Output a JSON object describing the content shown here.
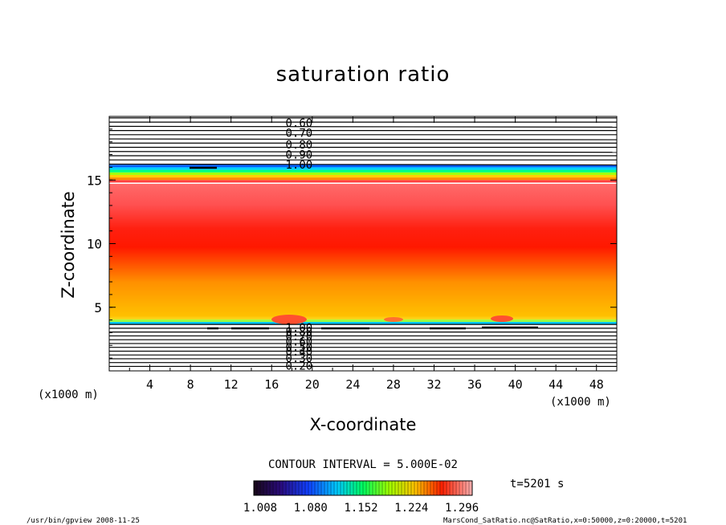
{
  "chart_data": {
    "type": "contour",
    "title": "saturation ratio",
    "xlabel": "X-coordinate",
    "ylabel": "Z-coordinate",
    "x_unit": "(x1000 m)",
    "y_unit": "(x1000 m)",
    "xlim": [
      0,
      50
    ],
    "ylim": [
      0,
      20
    ],
    "x_ticks": [
      "4",
      "8",
      "12",
      "16",
      "20",
      "24",
      "28",
      "32",
      "36",
      "40",
      "44",
      "48"
    ],
    "y_ticks": [
      "5",
      "10",
      "15"
    ],
    "contour_interval_label": "CONTOUR INTERVAL = 5.000E-02",
    "upper_contour_labels": [
      "0.60",
      "0.70",
      "0.80",
      "0.90",
      "1.00"
    ],
    "lower_contour_labels": [
      "1.00",
      "0.80",
      "0.70",
      "0.60",
      "0.50",
      "0.40",
      "0.30",
      "0.20"
    ],
    "colorbar": {
      "min": 1.008,
      "max": 1.32,
      "tick_labels": [
        "1.008",
        "1.080",
        "1.152",
        "1.224",
        "1.296"
      ]
    },
    "time_label": "t=5201 s",
    "profile": [
      {
        "z": 0.0,
        "ratio": 0.2
      },
      {
        "z": 3.5,
        "ratio": 0.95
      },
      {
        "z": 3.7,
        "ratio": 1.01
      },
      {
        "z": 4.0,
        "ratio": 1.1
      },
      {
        "z": 5.0,
        "ratio": 1.17
      },
      {
        "z": 7.0,
        "ratio": 1.24
      },
      {
        "z": 9.0,
        "ratio": 1.29
      },
      {
        "z": 10.5,
        "ratio": 1.31
      },
      {
        "z": 12.5,
        "ratio": 1.28
      },
      {
        "z": 14.6,
        "ratio": 1.25
      },
      {
        "z": 14.8,
        "ratio": 1.1
      },
      {
        "z": 15.5,
        "ratio": 1.05
      },
      {
        "z": 16.0,
        "ratio": 1.01
      },
      {
        "z": 20.0,
        "ratio": 0.6
      }
    ],
    "colors": {
      "upper_bands": [
        "#ff4040",
        "#ff8c00",
        "#ffd000",
        "#a0ff00",
        "#00ff80",
        "#00d0ff",
        "#0060ff"
      ],
      "colorbar_stops": [
        "#180818",
        "#2a0a7a",
        "#1040ff",
        "#00c8ff",
        "#00ff60",
        "#a0ff00",
        "#ffc000",
        "#ff2000",
        "#ffb0b0"
      ]
    }
  },
  "footer": {
    "left": "/usr/bin/gpview   2008-11-25",
    "right": "MarsCond_SatRatio.nc@SatRatio,x=0:50000,z=0:20000,t=5201"
  }
}
